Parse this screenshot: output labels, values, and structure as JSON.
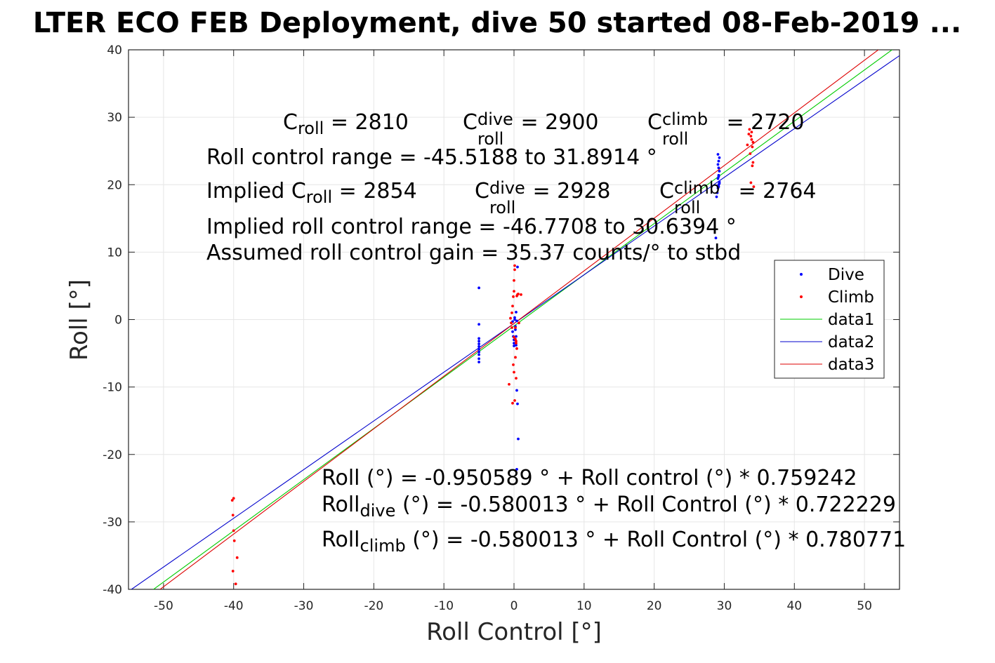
{
  "chart_data": {
    "type": "scatter",
    "title": "LTER ECO FEB Deployment, dive 50 started 08-Feb-2019 ...",
    "xlabel": "Roll Control [°]",
    "ylabel": "Roll [°]",
    "xlim": [
      -55,
      55
    ],
    "ylim": [
      -40,
      40
    ],
    "xticks": [
      -50,
      -40,
      -30,
      -20,
      -10,
      0,
      10,
      20,
      30,
      40,
      50
    ],
    "yticks": [
      -40,
      -30,
      -20,
      -10,
      0,
      10,
      20,
      30,
      40
    ],
    "xtick_labels": [
      "-50",
      "-40",
      "-30",
      "-20",
      "-10",
      "0",
      "10",
      "20",
      "30",
      "40",
      "50"
    ],
    "ytick_labels": [
      "-40",
      "-30",
      "-20",
      "-10",
      "0",
      "10",
      "20",
      "30",
      "40"
    ],
    "grid": true,
    "legend_position": "right",
    "colors": {
      "Dive": "#0000ff",
      "Climb": "#ff0000",
      "data1": "#00cc00",
      "data2": "#0000cc",
      "data3": "#dd0000"
    },
    "series": [
      {
        "name": "Dive",
        "kind": "points",
        "x": [
          -5,
          -5,
          -5,
          -5,
          -5,
          -5,
          -5,
          -5,
          -5,
          -5,
          -5,
          -0.2,
          -0.2,
          -0.1,
          0,
          0,
          0,
          0.1,
          0.1,
          0.2,
          0.2,
          0.3,
          0.3,
          0.4,
          0.5,
          0.6,
          0.4,
          0.5,
          0.4,
          0.3,
          28.8,
          28.9,
          29,
          29.1,
          29.2,
          29.3,
          29.1,
          29.2,
          29.3,
          29.2,
          29.1,
          29.2,
          29.3,
          29.1,
          29.2,
          29.3,
          29.2
        ],
        "y": [
          4.7,
          -0.7,
          -2.8,
          -3.2,
          -3.6,
          -4,
          -4.4,
          -4.8,
          -5.2,
          -5.8,
          -6.3,
          -0.3,
          -1.8,
          -2.5,
          -3,
          -3.5,
          -3.9,
          0,
          0.3,
          -1,
          -1.5,
          -2.5,
          -3.8,
          -10.5,
          -12.5,
          -17.7,
          -22.2,
          7.8,
          -0.2,
          1.1,
          12.1,
          18.2,
          18.8,
          19.5,
          20,
          20.4,
          20.9,
          21.4,
          22,
          22.5,
          23,
          23.5,
          24,
          24.5,
          19.7,
          20.2,
          21.2
        ]
      },
      {
        "name": "Climb",
        "kind": "points",
        "x": [
          -40.2,
          -40,
          -40.1,
          -40,
          -39.9,
          -40.1,
          -39.7,
          -39.5,
          -0.7,
          -0.5,
          -0.4,
          -0.3,
          -0.2,
          -0.1,
          0,
          0,
          0.1,
          0.1,
          0.2,
          0.2,
          0.3,
          0.3,
          0.4,
          0.5,
          0.6,
          0.7,
          1,
          0,
          -0.2,
          0.1,
          0.3,
          -0.1,
          0.2,
          0,
          -0.3,
          0.4,
          33.3,
          33.5,
          33.6,
          33.8,
          33.9,
          34,
          34.1,
          34.2,
          34,
          33.8,
          34.1,
          33.9,
          33.7
        ],
        "y": [
          -26.8,
          -26.5,
          -29,
          -31.3,
          -32.8,
          -37.3,
          -39.2,
          -35.3,
          -9.6,
          0.2,
          -0.5,
          1,
          2,
          3.4,
          4.2,
          5.8,
          7.4,
          8,
          -1.2,
          -2.9,
          -3.2,
          -3.5,
          3.5,
          3.7,
          3.8,
          -0.5,
          3.7,
          -7.8,
          -12.4,
          -12,
          -8.7,
          -6.7,
          -5.6,
          -2.6,
          -1.2,
          -4.3,
          25.9,
          27.5,
          28.2,
          27.2,
          26.7,
          25.6,
          23.3,
          19.7,
          22.8,
          20.3,
          26.3,
          27.8,
          24.6
        ]
      },
      {
        "name": "data1",
        "kind": "line",
        "x": [
          -55,
          55
        ],
        "y": [
          -42.71,
          40.81
        ]
      },
      {
        "name": "data2",
        "kind": "line",
        "x": [
          -55,
          55
        ],
        "y": [
          -40.3,
          39.14
        ]
      },
      {
        "name": "data3",
        "kind": "line",
        "x": [
          -55,
          55
        ],
        "y": [
          -43.52,
          42.36
        ]
      }
    ],
    "legend": [
      "Dive",
      "Climb",
      "data1",
      "data2",
      "data3"
    ]
  },
  "annotations": {
    "c_roll": {
      "c1": "C",
      "s1": "roll",
      "v1": " = 2810",
      "c2": "C",
      "sup2": "dive",
      "s2": "roll",
      "v2": " = 2900",
      "c3": "C",
      "sup3": "climb",
      "s3": "roll",
      "v3": " = 2720"
    },
    "range": "Roll control range = -45.5188 to 31.8914 °",
    "implied_c": {
      "c1": "Implied C",
      "s1": "roll",
      "v1": " = 2854",
      "c2": "C",
      "sup2": "dive",
      "s2": "roll",
      "v2": " = 2928",
      "c3": "C",
      "sup3": "climb",
      "s3": "roll",
      "v3": " = 2764"
    },
    "implied_range": "Implied roll control range = -46.7708 to 30.6394 °",
    "gain": "Assumed roll control gain = 35.37 counts/° to stbd",
    "eq1": "Roll (°) = -0.950589 ° + Roll control (°) * 0.759242",
    "eq2": {
      "a": "Roll",
      "sub": "dive",
      "b": " (°) = -0.580013 ° + Roll Control (°) * 0.722229"
    },
    "eq3": {
      "a": "Roll",
      "sub": "climb",
      "b": " (°) = -0.580013 ° + Roll Control (°) * 0.780771"
    }
  }
}
